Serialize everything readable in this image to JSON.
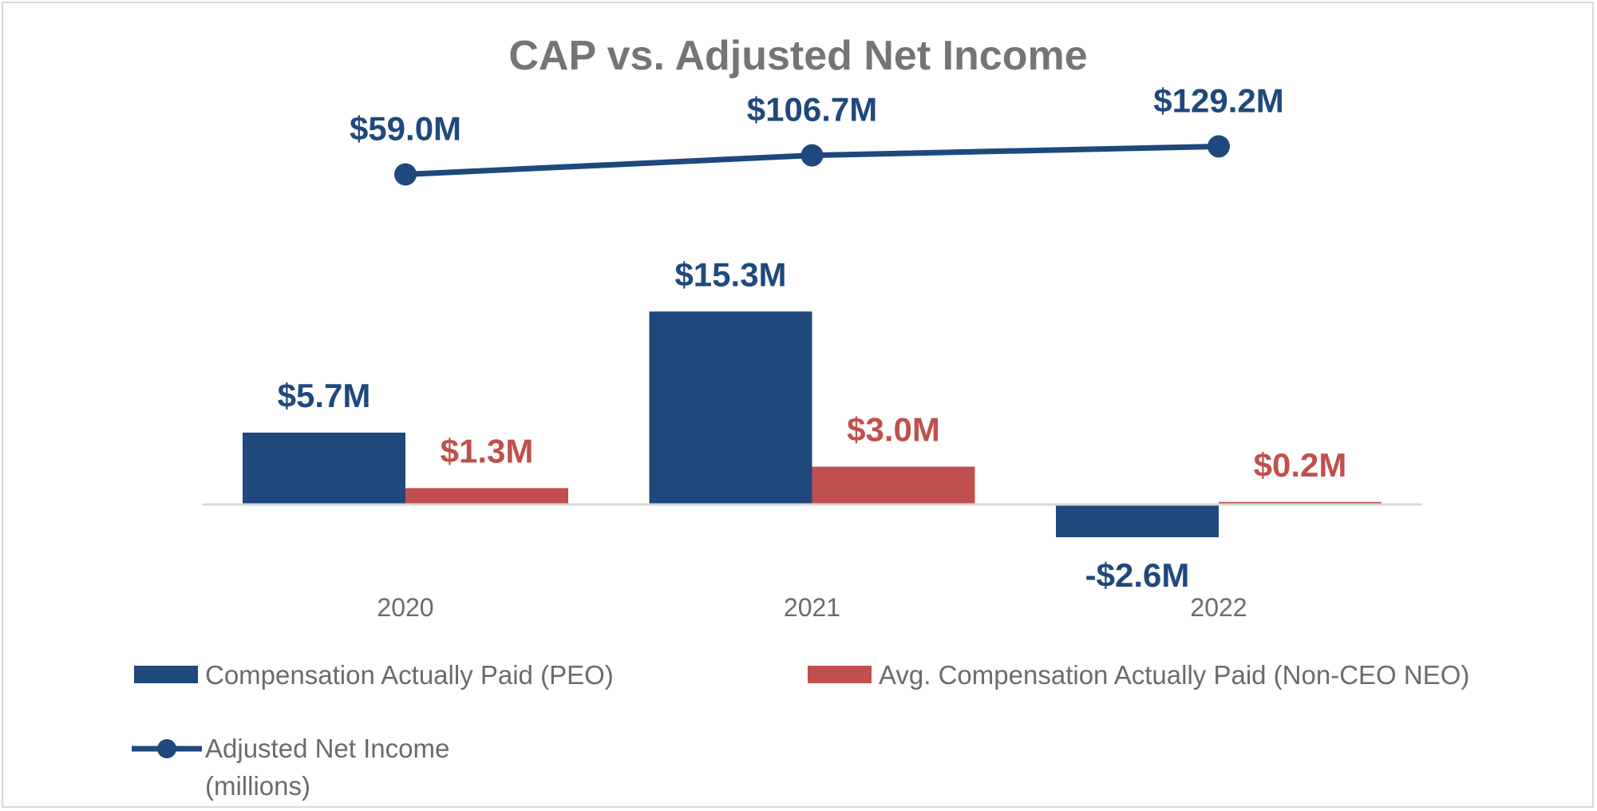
{
  "chart_data": {
    "type": "bar",
    "title": "CAP vs. Adjusted Net Income",
    "categories": [
      "2020",
      "2021",
      "2022"
    ],
    "series": [
      {
        "name": "Compensation Actually Paid (PEO)",
        "kind": "bar",
        "color": "#1f497d",
        "values": [
          5.7,
          15.3,
          -2.6
        ],
        "labels": [
          "$5.7M",
          "$15.3M",
          "-$2.6M"
        ]
      },
      {
        "name": "Avg. Compensation Actually Paid (Non-CEO NEO)",
        "kind": "bar",
        "color": "#c0504d",
        "values": [
          1.3,
          3.0,
          0.2
        ],
        "labels": [
          "$1.3M",
          "$3.0M",
          "$0.2M"
        ]
      },
      {
        "name": "Adjusted Net Income",
        "name_line2": "(millions)",
        "kind": "line",
        "color": "#1f497d",
        "values": [
          59.0,
          106.7,
          129.2
        ],
        "labels": [
          "$59.0M",
          "$106.7M",
          "$129.2M"
        ]
      }
    ],
    "legend_position": "bottom",
    "grid": false
  }
}
